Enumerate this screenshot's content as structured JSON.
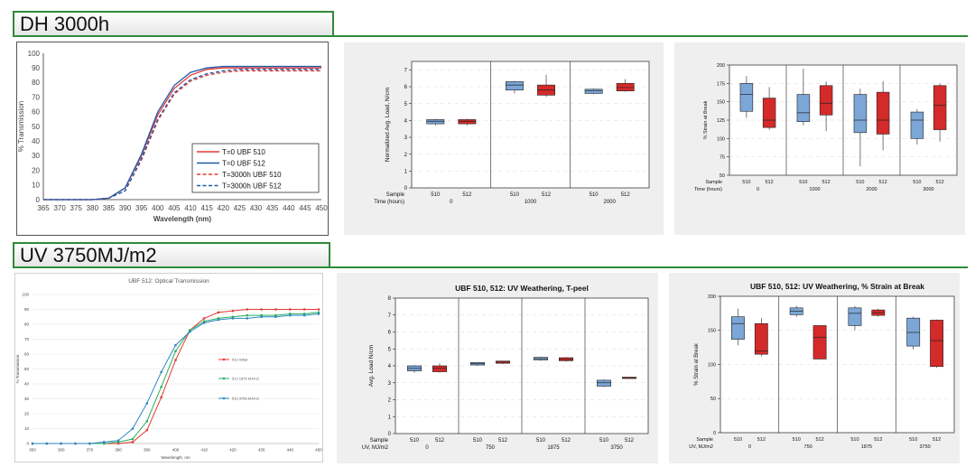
{
  "sections": {
    "dh_title": "DH 3000h",
    "uv_title": "UV 3750MJ/m2"
  },
  "colors": {
    "accent_green": "#2e8b3a",
    "box_blue": "#7ba6d6",
    "box_red": "#d42a2a",
    "line_red": "#e53935",
    "line_blue": "#1e5aa8"
  },
  "chart_data": [
    {
      "type": "line",
      "title": "",
      "xlabel": "Wavelength (nm)",
      "ylabel": "% Transmission",
      "xlim": [
        365,
        450
      ],
      "ylim": [
        0,
        100
      ],
      "xticks": [
        "365",
        "370",
        "375",
        "380",
        "385",
        "390",
        "395",
        "400",
        "405",
        "410",
        "415",
        "420",
        "425",
        "430",
        "435",
        "440",
        "445",
        "450"
      ],
      "yticks": [
        "0",
        "10",
        "20",
        "30",
        "40",
        "50",
        "60",
        "70",
        "80",
        "90",
        "100"
      ],
      "grid": false,
      "legend": "bottom-right",
      "x": [
        365,
        370,
        375,
        380,
        385,
        390,
        395,
        400,
        405,
        410,
        415,
        420,
        425,
        430,
        435,
        440,
        445,
        450
      ],
      "series": [
        {
          "name": "T=0 UBF 510",
          "style": "solid",
          "color": "#e53935",
          "values": [
            0,
            0,
            0,
            0,
            1,
            8,
            30,
            58,
            76,
            85,
            89,
            90,
            90,
            90,
            90,
            90,
            90,
            90
          ]
        },
        {
          "name": "T=0 UBF 512",
          "style": "solid",
          "color": "#1e5aa8",
          "values": [
            0,
            0,
            0,
            0,
            1,
            8,
            31,
            60,
            78,
            87,
            90,
            91,
            91,
            91,
            91,
            91,
            91,
            91
          ]
        },
        {
          "name": "T=3000h UBF 510",
          "style": "dashed",
          "color": "#e53935",
          "values": [
            0,
            0,
            0,
            0,
            1,
            6,
            27,
            54,
            72,
            81,
            85,
            87,
            88,
            88,
            88,
            88,
            88,
            88
          ]
        },
        {
          "name": "T=3000h UBF 512",
          "style": "dashed",
          "color": "#1e5aa8",
          "values": [
            0,
            0,
            0,
            0,
            1,
            6,
            28,
            55,
            73,
            82,
            86,
            88,
            89,
            89,
            89,
            89,
            89,
            89
          ]
        }
      ]
    },
    {
      "type": "box",
      "title": "",
      "ylabel": "Normalized Avg. Load, N/cm",
      "ylim": [
        0,
        7.5
      ],
      "yticks": [
        "0",
        "1",
        "2",
        "3",
        "4",
        "5",
        "6",
        "7"
      ],
      "row1_label": "Sample",
      "row2_label": "Time (hours)",
      "groups": [
        {
          "label": "0",
          "samples": [
            {
              "name": "510",
              "q1": 3.8,
              "median": 3.95,
              "q3": 4.05,
              "min": 3.7,
              "max": 4.1
            },
            {
              "name": "512",
              "q1": 3.8,
              "median": 3.95,
              "q3": 4.05,
              "min": 3.7,
              "max": 4.1
            }
          ]
        },
        {
          "label": "1000",
          "samples": [
            {
              "name": "510",
              "q1": 5.8,
              "median": 6.1,
              "q3": 6.3,
              "min": 5.6,
              "max": 6.35
            },
            {
              "name": "512",
              "q1": 5.5,
              "median": 5.8,
              "q3": 6.1,
              "min": 5.4,
              "max": 6.7
            }
          ]
        },
        {
          "label": "2000",
          "samples": [
            {
              "name": "510",
              "q1": 5.6,
              "median": 5.75,
              "q3": 5.85,
              "min": 5.55,
              "max": 5.9
            },
            {
              "name": "512",
              "q1": 5.75,
              "median": 5.95,
              "q3": 6.2,
              "min": 5.7,
              "max": 6.45
            }
          ]
        }
      ]
    },
    {
      "type": "box",
      "title": "",
      "ylabel": "% Strain at Break",
      "ylim": [
        50,
        200
      ],
      "yticks": [
        "50",
        "75",
        "100",
        "125",
        "150",
        "175",
        "200"
      ],
      "row1_label": "Sample",
      "row2_label": "Time (hours)",
      "groups": [
        {
          "label": "0",
          "samples": [
            {
              "name": "510",
              "q1": 137,
              "median": 160,
              "q3": 175,
              "min": 128,
              "max": 185
            },
            {
              "name": "512",
              "q1": 115,
              "median": 125,
              "q3": 155,
              "min": 112,
              "max": 170
            }
          ]
        },
        {
          "label": "1000",
          "samples": [
            {
              "name": "510",
              "q1": 123,
              "median": 135,
              "q3": 160,
              "min": 118,
              "max": 195
            },
            {
              "name": "512",
              "q1": 132,
              "median": 148,
              "q3": 172,
              "min": 110,
              "max": 178
            }
          ]
        },
        {
          "label": "2000",
          "samples": [
            {
              "name": "510",
              "q1": 108,
              "median": 125,
              "q3": 160,
              "min": 62,
              "max": 168
            },
            {
              "name": "512",
              "q1": 106,
              "median": 125,
              "q3": 163,
              "min": 84,
              "max": 178
            }
          ]
        },
        {
          "label": "3000",
          "samples": [
            {
              "name": "510",
              "q1": 100,
              "median": 125,
              "q3": 136,
              "min": 92,
              "max": 140
            },
            {
              "name": "512",
              "q1": 112,
              "median": 145,
              "q3": 172,
              "min": 96,
              "max": 175
            }
          ]
        }
      ]
    },
    {
      "type": "line",
      "title": "UBF 512: Optical Transmission",
      "xlabel": "Wavelength, nm",
      "ylabel": "% Transmission",
      "xlim": [
        350,
        450
      ],
      "ylim": [
        0,
        100
      ],
      "xticks": [
        "350",
        "360",
        "370",
        "380",
        "390",
        "400",
        "410",
        "420",
        "430",
        "440",
        "450"
      ],
      "yticks": [
        "0",
        "10",
        "20",
        "30",
        "40",
        "50",
        "60",
        "70",
        "80",
        "90",
        "100"
      ],
      "grid": true,
      "legend": "middle-right",
      "x": [
        350,
        355,
        360,
        365,
        370,
        375,
        380,
        385,
        390,
        395,
        400,
        405,
        410,
        415,
        420,
        425,
        430,
        435,
        440,
        445,
        450
      ],
      "series": [
        {
          "name": "512 Initial",
          "color": "#e53935",
          "values": [
            0,
            0,
            0,
            0,
            0,
            0,
            0,
            1,
            9,
            31,
            56,
            76,
            84,
            88,
            89,
            90,
            90,
            90,
            90,
            90,
            90
          ]
        },
        {
          "name": "512 1875 MJ/m2",
          "color": "#27ae60",
          "values": [
            0,
            0,
            0,
            0,
            0,
            0,
            1,
            3,
            15,
            38,
            62,
            76,
            82,
            84,
            85,
            86,
            86,
            86,
            87,
            87,
            88
          ]
        },
        {
          "name": "512 3750 MJ/m2",
          "color": "#2e86c1",
          "values": [
            0,
            0,
            0,
            0,
            0,
            1,
            2,
            10,
            27,
            48,
            66,
            75,
            81,
            83,
            84,
            84,
            85,
            85,
            86,
            86,
            87
          ]
        }
      ]
    },
    {
      "type": "box",
      "title": "UBF 510, 512:  UV Weathering, T-peel",
      "ylabel": "Avg. Load N/cm",
      "ylim": [
        0,
        8
      ],
      "yticks": [
        "0",
        "1",
        "2",
        "3",
        "4",
        "5",
        "6",
        "7",
        "8"
      ],
      "row1_label": "Sample",
      "row2_label": "UV, MJ/m2",
      "groups": [
        {
          "label": "0",
          "samples": [
            {
              "name": "510",
              "q1": 3.7,
              "median": 3.85,
              "q3": 4.0,
              "min": 3.6,
              "max": 4.05
            },
            {
              "name": "512",
              "q1": 3.65,
              "median": 3.85,
              "q3": 4.0,
              "min": 3.6,
              "max": 4.15
            }
          ]
        },
        {
          "label": "750",
          "samples": [
            {
              "name": "510",
              "q1": 4.05,
              "median": 4.12,
              "q3": 4.2,
              "min": 4.0,
              "max": 4.22
            },
            {
              "name": "512",
              "q1": 4.15,
              "median": 4.22,
              "q3": 4.28,
              "min": 4.1,
              "max": 4.3
            }
          ]
        },
        {
          "label": "1875",
          "samples": [
            {
              "name": "510",
              "q1": 4.35,
              "median": 4.42,
              "q3": 4.5,
              "min": 4.3,
              "max": 4.55
            },
            {
              "name": "512",
              "q1": 4.3,
              "median": 4.38,
              "q3": 4.48,
              "min": 4.25,
              "max": 4.52
            }
          ]
        },
        {
          "label": "3750",
          "samples": [
            {
              "name": "510",
              "q1": 2.8,
              "median": 3.0,
              "q3": 3.15,
              "min": 2.75,
              "max": 3.2
            },
            {
              "name": "512",
              "q1": 3.27,
              "median": 3.3,
              "q3": 3.33,
              "min": 3.25,
              "max": 3.35
            }
          ]
        }
      ]
    },
    {
      "type": "box",
      "title": "UBF 510, 512:  UV Weathering, % Strain at Break",
      "ylabel": "% Strain at Break",
      "ylim": [
        0,
        200
      ],
      "yticks": [
        "0",
        "50",
        "100",
        "150",
        "200"
      ],
      "row1_label": "Sample",
      "row2_label": "UV, MJ/m2",
      "groups": [
        {
          "label": "0",
          "samples": [
            {
              "name": "510",
              "q1": 137,
              "median": 160,
              "q3": 170,
              "min": 128,
              "max": 182
            },
            {
              "name": "512",
              "q1": 115,
              "median": 120,
              "q3": 160,
              "min": 112,
              "max": 168
            }
          ]
        },
        {
          "label": "750",
          "samples": [
            {
              "name": "510",
              "q1": 173,
              "median": 178,
              "q3": 183,
              "min": 170,
              "max": 186
            },
            {
              "name": "512",
              "q1": 108,
              "median": 140,
              "q3": 157,
              "min": 108,
              "max": 157
            }
          ]
        },
        {
          "label": "1875",
          "samples": [
            {
              "name": "510",
              "q1": 157,
              "median": 175,
              "q3": 183,
              "min": 150,
              "max": 186
            },
            {
              "name": "512",
              "q1": 172,
              "median": 176,
              "q3": 180,
              "min": 170,
              "max": 182
            }
          ]
        },
        {
          "label": "3750",
          "samples": [
            {
              "name": "510",
              "q1": 127,
              "median": 147,
              "q3": 168,
              "min": 122,
              "max": 170
            },
            {
              "name": "512",
              "q1": 97,
              "median": 135,
              "q3": 165,
              "min": 95,
              "max": 166
            }
          ]
        }
      ]
    }
  ]
}
